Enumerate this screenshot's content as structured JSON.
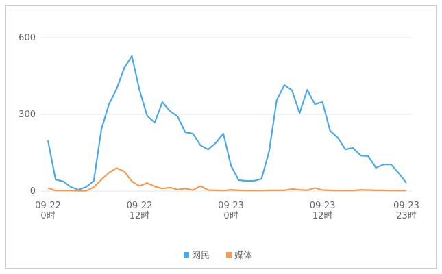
{
  "chart_data": {
    "type": "line",
    "categories": [
      "09-22\n0时",
      null,
      null,
      null,
      null,
      null,
      null,
      null,
      null,
      null,
      null,
      null,
      "09-22\n12时",
      null,
      null,
      null,
      null,
      null,
      null,
      null,
      null,
      null,
      null,
      null,
      "09-23\n0时",
      null,
      null,
      null,
      null,
      null,
      null,
      null,
      null,
      null,
      null,
      null,
      "09-23\n12时",
      null,
      null,
      null,
      null,
      null,
      null,
      null,
      null,
      null,
      null,
      "09-23\n23时"
    ],
    "series": [
      {
        "name": "网民",
        "color": "#4aa9ec",
        "values": [
          198,
          45,
          38,
          16,
          5,
          16,
          40,
          241,
          340,
          399,
          482,
          528,
          396,
          295,
          268,
          348,
          313,
          292,
          230,
          225,
          179,
          163,
          188,
          225,
          99,
          43,
          40,
          40,
          48,
          155,
          356,
          415,
          394,
          305,
          396,
          340,
          348,
          236,
          209,
          163,
          169,
          139,
          137,
          91,
          104,
          104,
          70,
          32
        ]
      },
      {
        "name": "媒体",
        "color": "#f59a4e",
        "values": [
          12,
          2,
          2,
          2,
          1,
          1,
          15,
          45,
          72,
          90,
          77,
          38,
          20,
          32,
          18,
          10,
          14,
          6,
          10,
          4,
          20,
          4,
          3,
          2,
          5,
          3,
          2,
          2,
          2,
          3,
          3,
          3,
          8,
          5,
          3,
          12,
          4,
          3,
          2,
          2,
          2,
          5,
          4,
          3,
          3,
          2,
          2,
          2
        ]
      }
    ],
    "ylim": [
      0,
      600
    ],
    "yticks": [
      0,
      300,
      600
    ],
    "grid": true,
    "legend": "bottom"
  }
}
